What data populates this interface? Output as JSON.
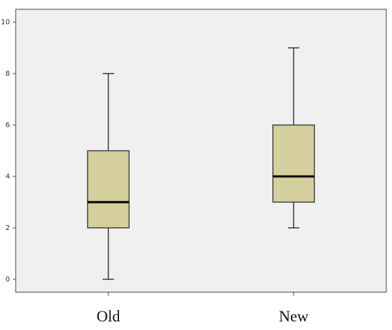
{
  "chart_data": {
    "type": "box",
    "categories": [
      "Old",
      "New"
    ],
    "boxes": [
      {
        "min": 0,
        "q1": 2,
        "median": 3,
        "q3": 5,
        "max": 8
      },
      {
        "min": 2,
        "q1": 3,
        "median": 4,
        "q3": 6,
        "max": 9
      }
    ],
    "color": "#d4cf9c",
    "ylim": [
      -0.5,
      10.5
    ],
    "yticks": [
      0,
      2,
      4,
      6,
      8,
      10
    ]
  }
}
